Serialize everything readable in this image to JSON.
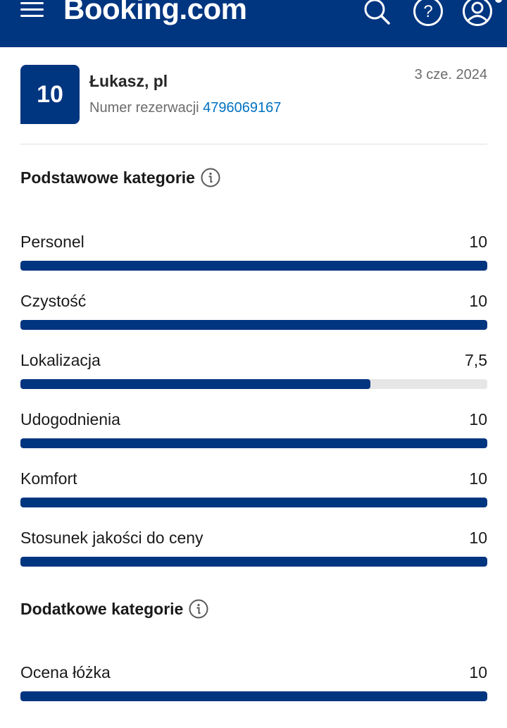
{
  "header": {
    "logo_text": "Booking.com",
    "icons": [
      "menu-icon",
      "search-icon",
      "help-icon",
      "account-icon"
    ],
    "colors": {
      "brand": "#003580",
      "link": "#0071c2"
    }
  },
  "review": {
    "score": "10",
    "reviewer": "Łukasz, pl",
    "booking_label": "Numer rezerwacji",
    "booking_number": "4796069167",
    "date": "3 cze. 2024"
  },
  "basic": {
    "title": "Podstawowe kategorie",
    "items": [
      {
        "label": "Personel",
        "value": "10",
        "fraction": 1.0
      },
      {
        "label": "Czystość",
        "value": "10",
        "fraction": 1.0
      },
      {
        "label": "Lokalizacja",
        "value": "7,5",
        "fraction": 0.75
      },
      {
        "label": "Udogodnienia",
        "value": "10",
        "fraction": 1.0
      },
      {
        "label": "Komfort",
        "value": "10",
        "fraction": 1.0
      },
      {
        "label": "Stosunek jakości do ceny",
        "value": "10",
        "fraction": 1.0
      }
    ]
  },
  "additional": {
    "title": "Dodatkowe kategorie",
    "items": [
      {
        "label": "Ocena łóżka",
        "value": "10",
        "fraction": 1.0
      }
    ]
  }
}
